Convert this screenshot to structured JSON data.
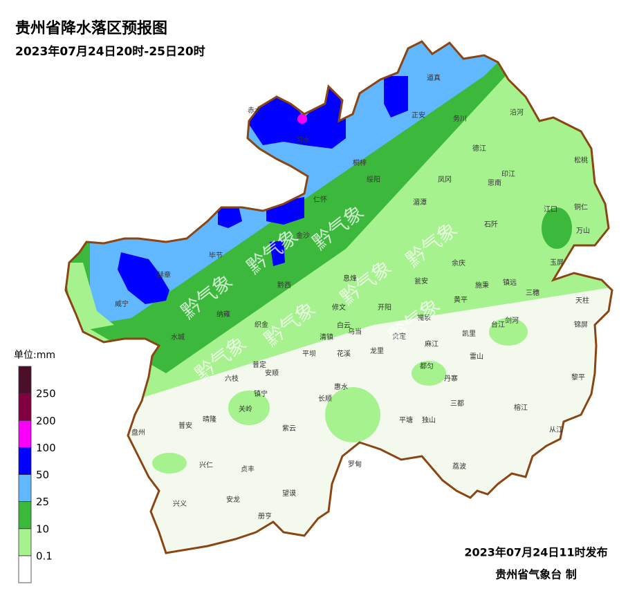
{
  "header": {
    "title": "贵州省降水落区预报图",
    "subtitle": "2023年07月24日20时-25日20时"
  },
  "legend": {
    "title": "单位:mm",
    "colors": [
      "#ffffff",
      "#a6f28f",
      "#3cb93c",
      "#61b8ff",
      "#0000fe",
      "#fa00fa",
      "#800040",
      "#4b0f2a"
    ],
    "labels": [
      0.1,
      10,
      25,
      50,
      100,
      200,
      250
    ]
  },
  "watermark": "黔气象",
  "counties": [
    "赤水",
    "习水",
    "道真",
    "正安",
    "务川",
    "沿河",
    "桐梓",
    "德江",
    "松桃",
    "绥阳",
    "凤冈",
    "印江",
    "思南",
    "仁怀",
    "湄潭",
    "江口",
    "铜仁",
    "石阡",
    "万山",
    "金沙",
    "毕节",
    "赫章",
    "余庆",
    "玉屏",
    "施秉",
    "镇远",
    "瓮安",
    "黔西",
    "息烽",
    "三穗",
    "威宁",
    "天柱",
    "黄平",
    "纳雍",
    "织金",
    "修文",
    "开阳",
    "锦屏",
    "台江",
    "剑河",
    "凯里",
    "白云",
    "清镇",
    "乌当",
    "福泉",
    "麻江",
    "水城",
    "龙里",
    "平坝",
    "花溪",
    "贵定",
    "雷山",
    "普定",
    "六枝",
    "安顺",
    "都匀",
    "黎平",
    "丹寨",
    "镇宁",
    "惠水",
    "长顺",
    "三都",
    "关岭",
    "榕江",
    "普安",
    "晴隆",
    "平塘",
    "独山",
    "紫云",
    "从江",
    "盘州",
    "兴仁",
    "罗甸",
    "贞丰",
    "荔波",
    "望谟",
    "兴义",
    "安龙",
    "册亨"
  ],
  "footer": {
    "issued": "2023年07月24日11时发布",
    "agency": "贵州省气象台 制"
  }
}
